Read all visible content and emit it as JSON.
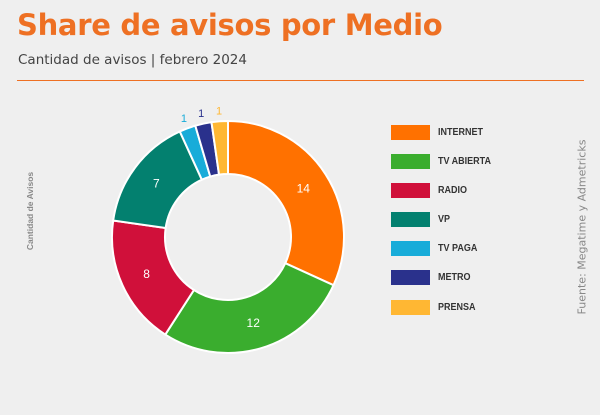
{
  "header": {
    "title": "Share de avisos por Medio",
    "subtitle": "Cantidad de avisos | febrero 2024"
  },
  "source": "Fuente: Megatime y Admetricks",
  "colors": {
    "accent": "#ee7023",
    "background": "#efefef"
  },
  "chart_data": {
    "type": "pie",
    "variant": "donut",
    "ylabel": "Cantidad de Avisos",
    "legend_position": "right",
    "categories": [
      "INTERNET",
      "TV ABIERTA",
      "RADIO",
      "VP",
      "TV PAGA",
      "METRO",
      "PRENSA"
    ],
    "values": [
      14,
      12,
      8,
      7,
      1,
      1,
      1
    ],
    "colors": [
      "#ff7100",
      "#3aad2e",
      "#d0103a",
      "#03806f",
      "#18acd9",
      "#2a318c",
      "#ffb733"
    ]
  }
}
